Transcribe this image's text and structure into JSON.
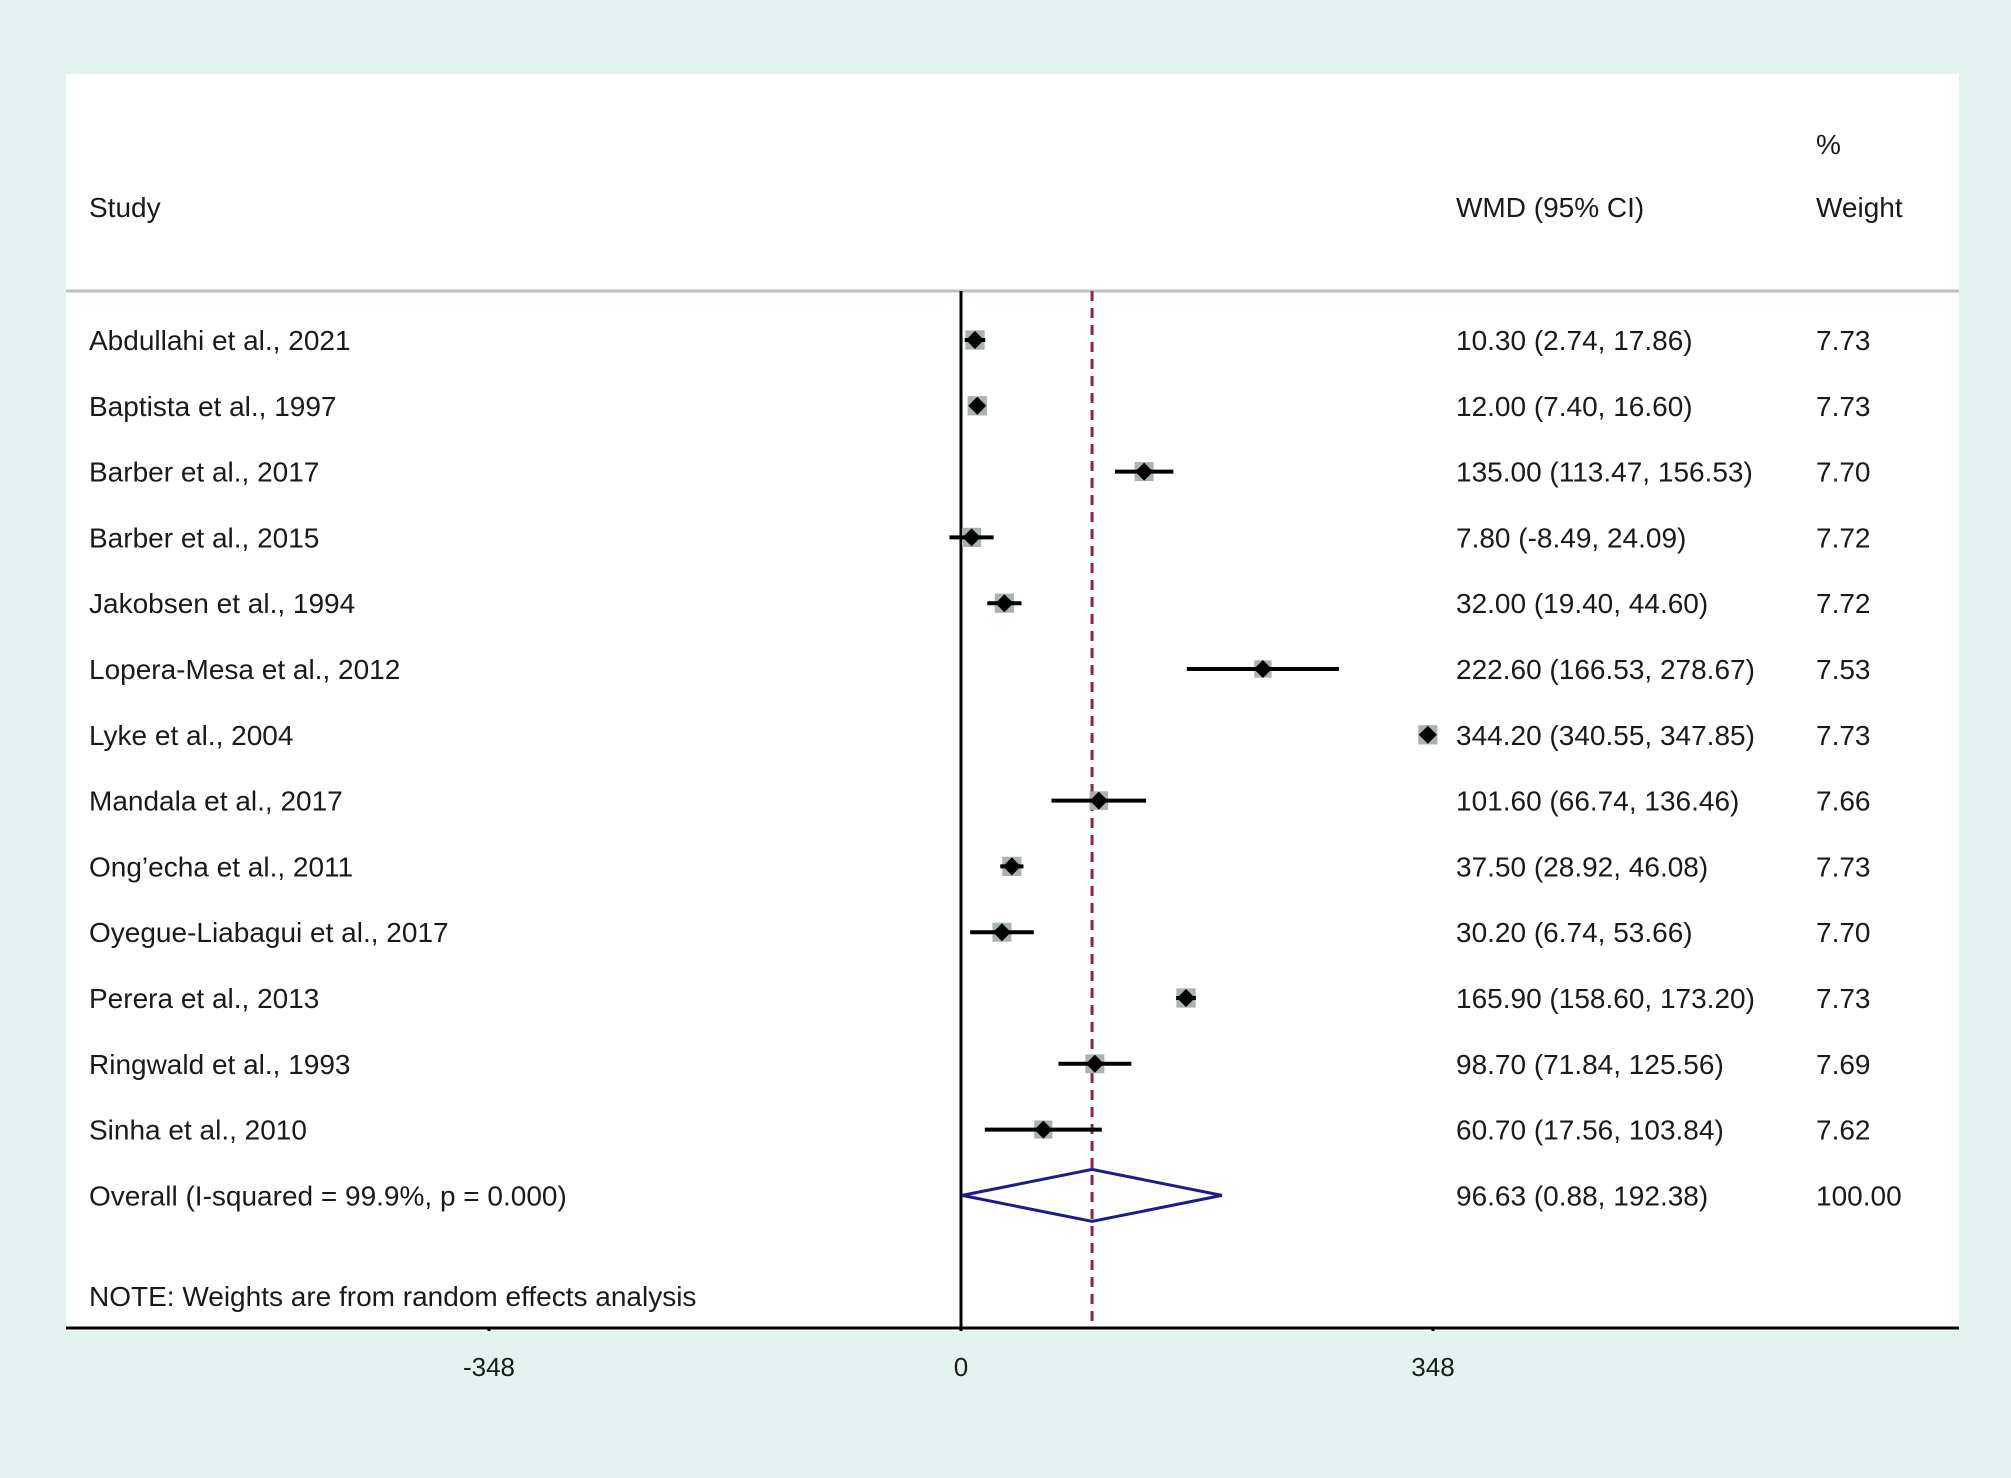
{
  "chart_data": {
    "type": "forest",
    "title": "",
    "xlabel": "",
    "ylabel": "",
    "columns": {
      "study": "Study",
      "effect": "WMD (95% CI)",
      "weight_line1": "%",
      "weight_line2": "Weight"
    },
    "studies": [
      {
        "study": "Abdullahi et al., 2021",
        "wmd": 10.3,
        "lower": 2.74,
        "upper": 17.86,
        "weight": 7.73,
        "effect_label": "10.30 (2.74, 17.86)",
        "weight_label": "7.73"
      },
      {
        "study": "Baptista et al., 1997",
        "wmd": 12.0,
        "lower": 7.4,
        "upper": 16.6,
        "weight": 7.73,
        "effect_label": "12.00 (7.40, 16.60)",
        "weight_label": "7.73"
      },
      {
        "study": "Barber et al., 2017",
        "wmd": 135.0,
        "lower": 113.47,
        "upper": 156.53,
        "weight": 7.7,
        "effect_label": "135.00 (113.47, 156.53)",
        "weight_label": "7.70"
      },
      {
        "study": "Barber et al., 2015",
        "wmd": 7.8,
        "lower": -8.49,
        "upper": 24.09,
        "weight": 7.72,
        "effect_label": "7.80 (-8.49, 24.09)",
        "weight_label": "7.72"
      },
      {
        "study": "Jakobsen et al., 1994",
        "wmd": 32.0,
        "lower": 19.4,
        "upper": 44.6,
        "weight": 7.72,
        "effect_label": "32.00 (19.40, 44.60)",
        "weight_label": "7.72"
      },
      {
        "study": "Lopera-Mesa et al., 2012",
        "wmd": 222.6,
        "lower": 166.53,
        "upper": 278.67,
        "weight": 7.53,
        "effect_label": "222.60 (166.53, 278.67)",
        "weight_label": "7.53"
      },
      {
        "study": "Lyke et al., 2004",
        "wmd": 344.2,
        "lower": 340.55,
        "upper": 347.85,
        "weight": 7.73,
        "effect_label": "344.20 (340.55, 347.85)",
        "weight_label": "7.73"
      },
      {
        "study": "Mandala et al., 2017",
        "wmd": 101.6,
        "lower": 66.74,
        "upper": 136.46,
        "weight": 7.66,
        "effect_label": "101.60 (66.74, 136.46)",
        "weight_label": "7.66"
      },
      {
        "study": "Ong’echa et al., 2011",
        "wmd": 37.5,
        "lower": 28.92,
        "upper": 46.08,
        "weight": 7.73,
        "effect_label": "37.50 (28.92, 46.08)",
        "weight_label": "7.73"
      },
      {
        "study": "Oyegue-Liabagui et al., 2017",
        "wmd": 30.2,
        "lower": 6.74,
        "upper": 53.66,
        "weight": 7.7,
        "effect_label": "30.20 (6.74, 53.66)",
        "weight_label": "7.70"
      },
      {
        "study": "Perera et al., 2013",
        "wmd": 165.9,
        "lower": 158.6,
        "upper": 173.2,
        "weight": 7.73,
        "effect_label": "165.90 (158.60, 173.20)",
        "weight_label": "7.73"
      },
      {
        "study": "Ringwald et al., 1993",
        "wmd": 98.7,
        "lower": 71.84,
        "upper": 125.56,
        "weight": 7.69,
        "effect_label": "98.70 (71.84, 125.56)",
        "weight_label": "7.69"
      },
      {
        "study": "Sinha et al., 2010",
        "wmd": 60.7,
        "lower": 17.56,
        "upper": 103.84,
        "weight": 7.62,
        "effect_label": "60.70 (17.56, 103.84)",
        "weight_label": "7.62"
      }
    ],
    "overall": {
      "study": "Overall  (I-squared = 99.9%, p = 0.000)",
      "wmd": 96.63,
      "lower": 0.88,
      "upper": 192.38,
      "effect_label": "96.63 (0.88, 192.38)",
      "weight_label": "100.00"
    },
    "note": "NOTE: Weights are from random effects analysis",
    "x_ticks": [
      -348,
      0,
      348
    ],
    "x_tick_labels": [
      "-348",
      "0",
      "348"
    ],
    "xlim": [
      -657,
      738
    ],
    "null_line": 0,
    "reference_line": 96.63,
    "colors": {
      "background": "#e3f3ef",
      "panel": "#ffffff",
      "point": "#000000",
      "weight_box": "#a9b3b3",
      "ci_line": "#000000",
      "overall_diamond": "#1c1c8c",
      "reference_line": "#8b2545",
      "axis": "#000000",
      "separator": "#b8c2c4"
    }
  }
}
